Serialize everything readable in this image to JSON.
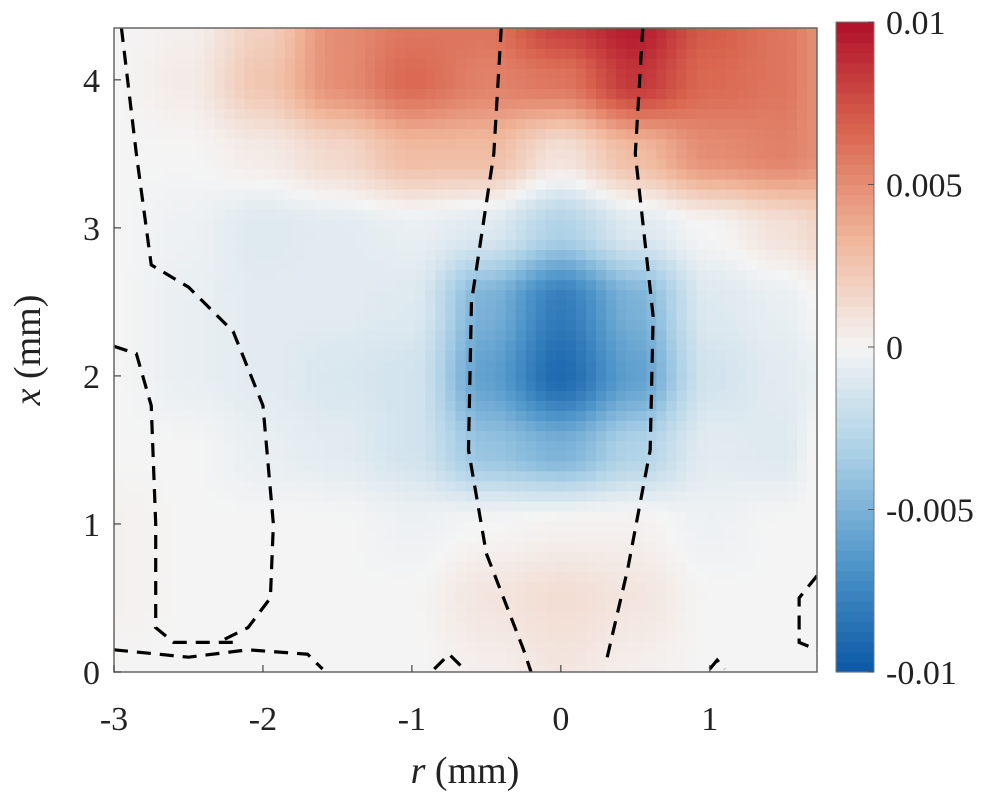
{
  "chart_data": {
    "type": "heatmap",
    "xlabel_var": "r",
    "xlabel_unit": "(mm)",
    "ylabel_var": "x",
    "ylabel_unit": "(mm)",
    "xlim": [
      -3,
      1.72
    ],
    "ylim": [
      0,
      4.35
    ],
    "xticks": [
      -3,
      -2,
      -1,
      0,
      1
    ],
    "xtick_labels": [
      "-3",
      "-2",
      "-1",
      "0",
      "1"
    ],
    "yticks": [
      0,
      1,
      2,
      3,
      4
    ],
    "ytick_labels": [
      "0",
      "1",
      "2",
      "3",
      "4"
    ],
    "colorbar": {
      "range": [
        -0.01,
        0.01
      ],
      "ticks": [
        0.01,
        0.005,
        0,
        -0.005,
        -0.01
      ],
      "tick_labels": [
        "0.01",
        "0.005",
        "0",
        "-0.005",
        "-0.01"
      ],
      "colormap": [
        "#0b58a6",
        "#4e95c9",
        "#a9cfe6",
        "#f4f4f4",
        "#f0b69a",
        "#d9654f",
        "#b0102a"
      ]
    },
    "grid": false,
    "r": [
      -3,
      -2.5,
      -2,
      -1.5,
      -1,
      -0.5,
      0,
      0.5,
      1,
      1.5,
      1.72
    ],
    "x": [
      0,
      0.5,
      1,
      1.5,
      2,
      2.5,
      3,
      3.5,
      4,
      4.35
    ],
    "z": [
      [
        0,
        0,
        0,
        0,
        0,
        0.0003,
        0.0008,
        0.0003,
        0,
        0,
        0
      ],
      [
        0.0002,
        0,
        0,
        0,
        0,
        0.0008,
        0.0012,
        0.0008,
        0,
        0,
        0
      ],
      [
        0.0002,
        0,
        0,
        0,
        -0.0003,
        0,
        0.0002,
        0.0002,
        -0.0003,
        0,
        0
      ],
      [
        0,
        0,
        -0.0005,
        -0.0008,
        -0.0015,
        -0.004,
        -0.005,
        -0.003,
        -0.0008,
        -0.001,
        0
      ],
      [
        0,
        -0.0005,
        -0.0008,
        -0.0012,
        -0.0015,
        -0.006,
        -0.009,
        -0.006,
        -0.0015,
        -0.0008,
        -0.0005
      ],
      [
        0,
        -0.0005,
        -0.0008,
        -0.0008,
        -0.001,
        -0.005,
        -0.008,
        -0.005,
        -0.001,
        -0.0005,
        0
      ],
      [
        0,
        -0.0003,
        -0.001,
        -0.0008,
        -0.0005,
        -0.001,
        -0.003,
        -0.001,
        0,
        0.001,
        0.0015
      ],
      [
        0,
        0,
        0.0005,
        0.0015,
        0.003,
        0.003,
        0.001,
        0.003,
        0.005,
        0.0055,
        0.005
      ],
      [
        0,
        0.0005,
        0.0025,
        0.005,
        0.0065,
        0.0055,
        0.006,
        0.0085,
        0.0065,
        0.006,
        0.005
      ],
      [
        0,
        0.0003,
        0.002,
        0.005,
        0.006,
        0.006,
        0.008,
        0.0095,
        0.007,
        0.006,
        0.005
      ]
    ],
    "contours": [
      [
        [
          -2.95,
          4.35
        ],
        [
          -2.85,
          3.5
        ],
        [
          -2.75,
          2.75
        ],
        [
          -2.5,
          2.6
        ],
        [
          -2.2,
          2.3
        ],
        [
          -2.0,
          1.8
        ],
        [
          -1.93,
          1.0
        ],
        [
          -1.95,
          0.5
        ],
        [
          -2.1,
          0.3
        ],
        [
          -2.3,
          0.2
        ]
      ],
      [
        [
          -0.4,
          4.35
        ],
        [
          -0.45,
          3.5
        ],
        [
          -0.6,
          2.5
        ],
        [
          -0.62,
          1.5
        ],
        [
          -0.5,
          0.8
        ],
        [
          -0.25,
          0.15
        ],
        [
          -0.2,
          0
        ]
      ],
      [
        [
          0.55,
          4.35
        ],
        [
          0.5,
          3.5
        ],
        [
          0.62,
          2.4
        ],
        [
          0.6,
          1.5
        ],
        [
          0.45,
          0.7
        ],
        [
          0.3,
          0.05
        ]
      ],
      [
        [
          -3,
          2.2
        ],
        [
          -2.85,
          2.15
        ],
        [
          -2.75,
          1.8
        ],
        [
          -2.72,
          1.0
        ],
        [
          -2.72,
          0.3
        ],
        [
          -2.6,
          0.2
        ],
        [
          -2.2,
          0.2
        ]
      ],
      [
        [
          -3,
          0.15
        ],
        [
          -2.5,
          0.1
        ],
        [
          -2.1,
          0.15
        ],
        [
          -1.7,
          0.12
        ],
        [
          -1.6,
          0.02
        ]
      ],
      [
        [
          1.72,
          0.65
        ],
        [
          1.6,
          0.5
        ],
        [
          1.6,
          0.2
        ],
        [
          1.72,
          0.15
        ]
      ],
      [
        [
          -0.85,
          0.02
        ],
        [
          -0.75,
          0.12
        ],
        [
          -0.65,
          0.02
        ]
      ],
      [
        [
          1.0,
          0.02
        ],
        [
          1.05,
          0.08
        ],
        [
          1.1,
          0.02
        ]
      ]
    ],
    "contour_style": "dashed",
    "contour_color": "#000000"
  }
}
